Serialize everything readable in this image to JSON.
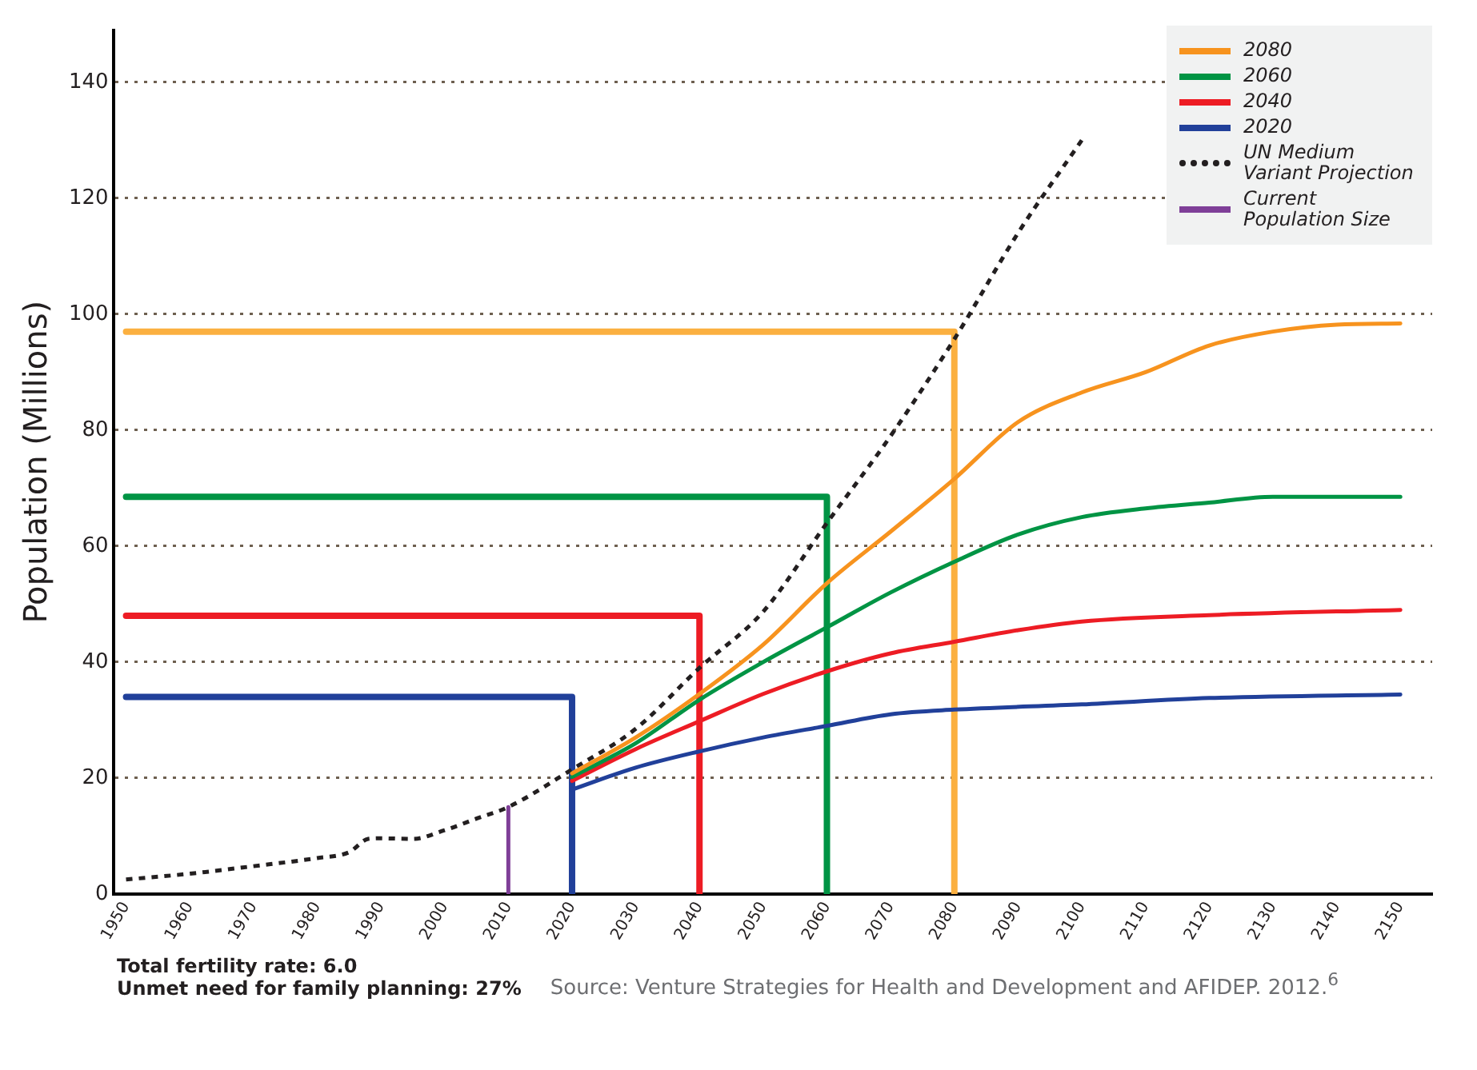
{
  "chart_data": {
    "type": "line",
    "ylabel": "Population (Millions)",
    "xlim": [
      1948,
      2155
    ],
    "ylim": [
      0,
      149
    ],
    "xticks": [
      1950,
      1960,
      1970,
      1980,
      1990,
      2000,
      2010,
      2020,
      2030,
      2040,
      2050,
      2060,
      2070,
      2080,
      2090,
      2100,
      2110,
      2120,
      2130,
      2140,
      2150
    ],
    "yticks": [
      0,
      20,
      40,
      60,
      80,
      100,
      120,
      140
    ],
    "grid": "y",
    "legend": "top right",
    "marker": "none",
    "series": [
      {
        "name": "2080",
        "color": "#f7931e",
        "x": [
          2020,
          2030,
          2040,
          2050,
          2060,
          2070,
          2080,
          2090,
          2100,
          2110,
          2120,
          2130,
          2140,
          2150
        ],
        "values": [
          20.8,
          27,
          34.5,
          43,
          53.6,
          62.5,
          71.6,
          81.4,
          86.5,
          90,
          94.6,
          97,
          98.2,
          98.4
        ]
      },
      {
        "name": "2060",
        "color": "#009444",
        "x": [
          2020,
          2030,
          2040,
          2050,
          2060,
          2070,
          2080,
          2090,
          2100,
          2110,
          2120,
          2130,
          2150
        ],
        "values": [
          20.2,
          26,
          33.5,
          40,
          46,
          52,
          57.3,
          62,
          65,
          66.5,
          67.5,
          68.5,
          68.5
        ]
      },
      {
        "name": "2040",
        "color": "#ed1c24",
        "x": [
          2020,
          2030,
          2040,
          2050,
          2060,
          2070,
          2080,
          2090,
          2100,
          2120,
          2150
        ],
        "values": [
          19.5,
          25,
          29.8,
          34.5,
          38.4,
          41.5,
          43.5,
          45.5,
          47,
          48.1,
          49
        ]
      },
      {
        "name": "2020",
        "color": "#21409a",
        "x": [
          2020,
          2030,
          2040,
          2050,
          2060,
          2070,
          2080,
          2100,
          2120,
          2150
        ],
        "values": [
          18,
          21.8,
          24.6,
          27,
          29,
          31,
          31.8,
          32.7,
          33.8,
          34.4
        ]
      },
      {
        "name": "UN Medium Variant Projection",
        "color": "#231f20",
        "line_style": "dotted",
        "x": [
          1950,
          1960,
          1970,
          1980,
          1985,
          1988,
          1990,
          1995,
          2000,
          2005,
          2010,
          2020,
          2030,
          2040,
          2050,
          2060,
          2070,
          2080,
          2090,
          2100
        ],
        "values": [
          2.5,
          3.5,
          4.8,
          6.2,
          7.2,
          9.5,
          9.6,
          9.5,
          11,
          13,
          15,
          21.5,
          28.5,
          39,
          48.7,
          64,
          79,
          95.7,
          114,
          130
        ]
      },
      {
        "name": "Current Population Size",
        "color": "#7f3f98",
        "x": [
          2010,
          2010
        ],
        "values": [
          0,
          15
        ]
      },
      {
        "color": "#fbb040",
        "x": [
          1950,
          2080,
          2080
        ],
        "values": [
          97,
          97,
          0
        ]
      },
      {
        "color": "#009444",
        "x": [
          1950,
          2060,
          2060
        ],
        "values": [
          68.5,
          68.5,
          0
        ]
      },
      {
        "color": "#ed1c24",
        "x": [
          1950,
          2040,
          2040
        ],
        "values": [
          48,
          48,
          0
        ]
      },
      {
        "color": "#21409a",
        "x": [
          1950,
          2020,
          2020
        ],
        "values": [
          34,
          34,
          0
        ]
      }
    ],
    "annotations": [
      "Total fertility rate: 6.0",
      "Unmet need for family planning: 27%",
      "Source: Venture Strategies for Health and Development and AFIDEP. 2012.$^{6}$"
    ]
  }
}
